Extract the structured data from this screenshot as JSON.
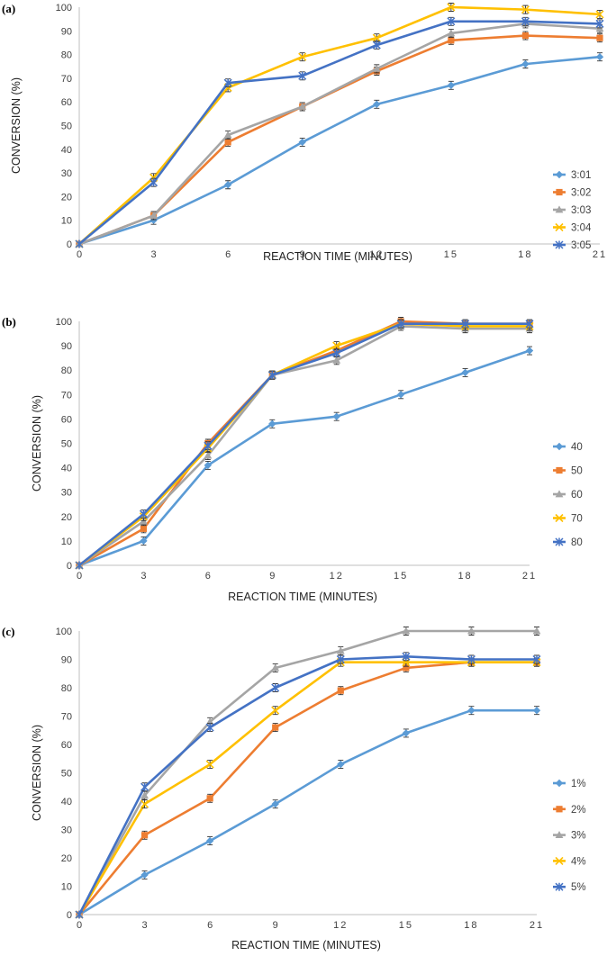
{
  "chart_data": [
    {
      "type": "line",
      "panel_label": "(a)",
      "xlabel": "REACTION TIME (MINUTES)",
      "ylabel": "CONVERSION (%)",
      "x": [
        0,
        3,
        6,
        9,
        12,
        15,
        18,
        21
      ],
      "x_tick_labels": [
        "0",
        "3",
        "6",
        "9",
        "12",
        "15",
        "18",
        "21"
      ],
      "ylim": [
        0,
        100
      ],
      "y_tick_labels": [
        "0",
        "10",
        "20",
        "30",
        "40",
        "50",
        "60",
        "70",
        "80",
        "90",
        "100"
      ],
      "legend_position": "right",
      "series": [
        {
          "name": "3:01",
          "color": "#5B9BD5",
          "marker": "diamond",
          "values": [
            0,
            10,
            25,
            43,
            59,
            67,
            76,
            79
          ]
        },
        {
          "name": "3:02",
          "color": "#ED7D31",
          "marker": "square",
          "values": [
            0,
            12,
            43,
            58,
            73,
            86,
            88,
            87
          ]
        },
        {
          "name": "3:03",
          "color": "#A5A5A5",
          "marker": "triangle",
          "values": [
            0,
            12,
            46,
            58,
            74,
            89,
            93,
            91
          ]
        },
        {
          "name": "3:04",
          "color": "#FFC000",
          "marker": "x",
          "values": [
            0,
            28,
            66,
            79,
            87,
            100,
            99,
            97
          ]
        },
        {
          "name": "3:05",
          "color": "#4472C4",
          "marker": "star",
          "values": [
            0,
            26,
            68,
            71,
            84,
            94,
            94,
            93
          ]
        }
      ]
    },
    {
      "type": "line",
      "panel_label": "(b)",
      "xlabel": "REACTION TIME (MINUTES)",
      "ylabel": "CONVERSION (%)",
      "x": [
        0,
        3,
        6,
        9,
        12,
        15,
        18,
        21
      ],
      "x_tick_labels": [
        "0",
        "3",
        "6",
        "9",
        "12",
        "15",
        "18",
        "21"
      ],
      "ylim": [
        0,
        100
      ],
      "y_tick_labels": [
        "0",
        "10",
        "20",
        "30",
        "40",
        "50",
        "60",
        "70",
        "80",
        "90",
        "100"
      ],
      "legend_position": "right",
      "series": [
        {
          "name": "40",
          "color": "#5B9BD5",
          "marker": "diamond",
          "values": [
            0,
            10,
            41,
            58,
            61,
            70,
            79,
            88
          ]
        },
        {
          "name": "50",
          "color": "#ED7D31",
          "marker": "square",
          "values": [
            0,
            15,
            50,
            78,
            88,
            100,
            99,
            99
          ]
        },
        {
          "name": "60",
          "color": "#A5A5A5",
          "marker": "triangle",
          "values": [
            0,
            18,
            45,
            78,
            84,
            98,
            97,
            97
          ]
        },
        {
          "name": "70",
          "color": "#FFC000",
          "marker": "x",
          "values": [
            0,
            20,
            48,
            78,
            90,
            99,
            98,
            98
          ]
        },
        {
          "name": "80",
          "color": "#4472C4",
          "marker": "star",
          "values": [
            0,
            21,
            49,
            78,
            87,
            99,
            99,
            99
          ]
        }
      ]
    },
    {
      "type": "line",
      "panel_label": "(c)",
      "xlabel": "REACTION TIME (MINUTES)",
      "ylabel": "CONVERSION (%)",
      "x": [
        0,
        3,
        6,
        9,
        12,
        15,
        18,
        21
      ],
      "x_tick_labels": [
        "0",
        "3",
        "6",
        "9",
        "12",
        "15",
        "18",
        "21"
      ],
      "ylim": [
        0,
        100
      ],
      "y_tick_labels": [
        "0",
        "10",
        "20",
        "30",
        "40",
        "50",
        "60",
        "70",
        "80",
        "90",
        "100"
      ],
      "legend_position": "right",
      "series": [
        {
          "name": "1%",
          "color": "#5B9BD5",
          "marker": "diamond",
          "values": [
            0,
            14,
            26,
            39,
            53,
            64,
            72,
            72
          ]
        },
        {
          "name": "2%",
          "color": "#ED7D31",
          "marker": "square",
          "values": [
            0,
            28,
            41,
            66,
            79,
            87,
            89,
            89
          ]
        },
        {
          "name": "3%",
          "color": "#A5A5A5",
          "marker": "triangle",
          "values": [
            0,
            42,
            68,
            87,
            93,
            100,
            100,
            100
          ]
        },
        {
          "name": "4%",
          "color": "#FFC000",
          "marker": "x",
          "values": [
            0,
            39,
            53,
            72,
            89,
            89,
            89,
            89
          ]
        },
        {
          "name": "5%",
          "color": "#4472C4",
          "marker": "star",
          "values": [
            0,
            45,
            66,
            80,
            90,
            91,
            90,
            90
          ]
        }
      ]
    }
  ]
}
